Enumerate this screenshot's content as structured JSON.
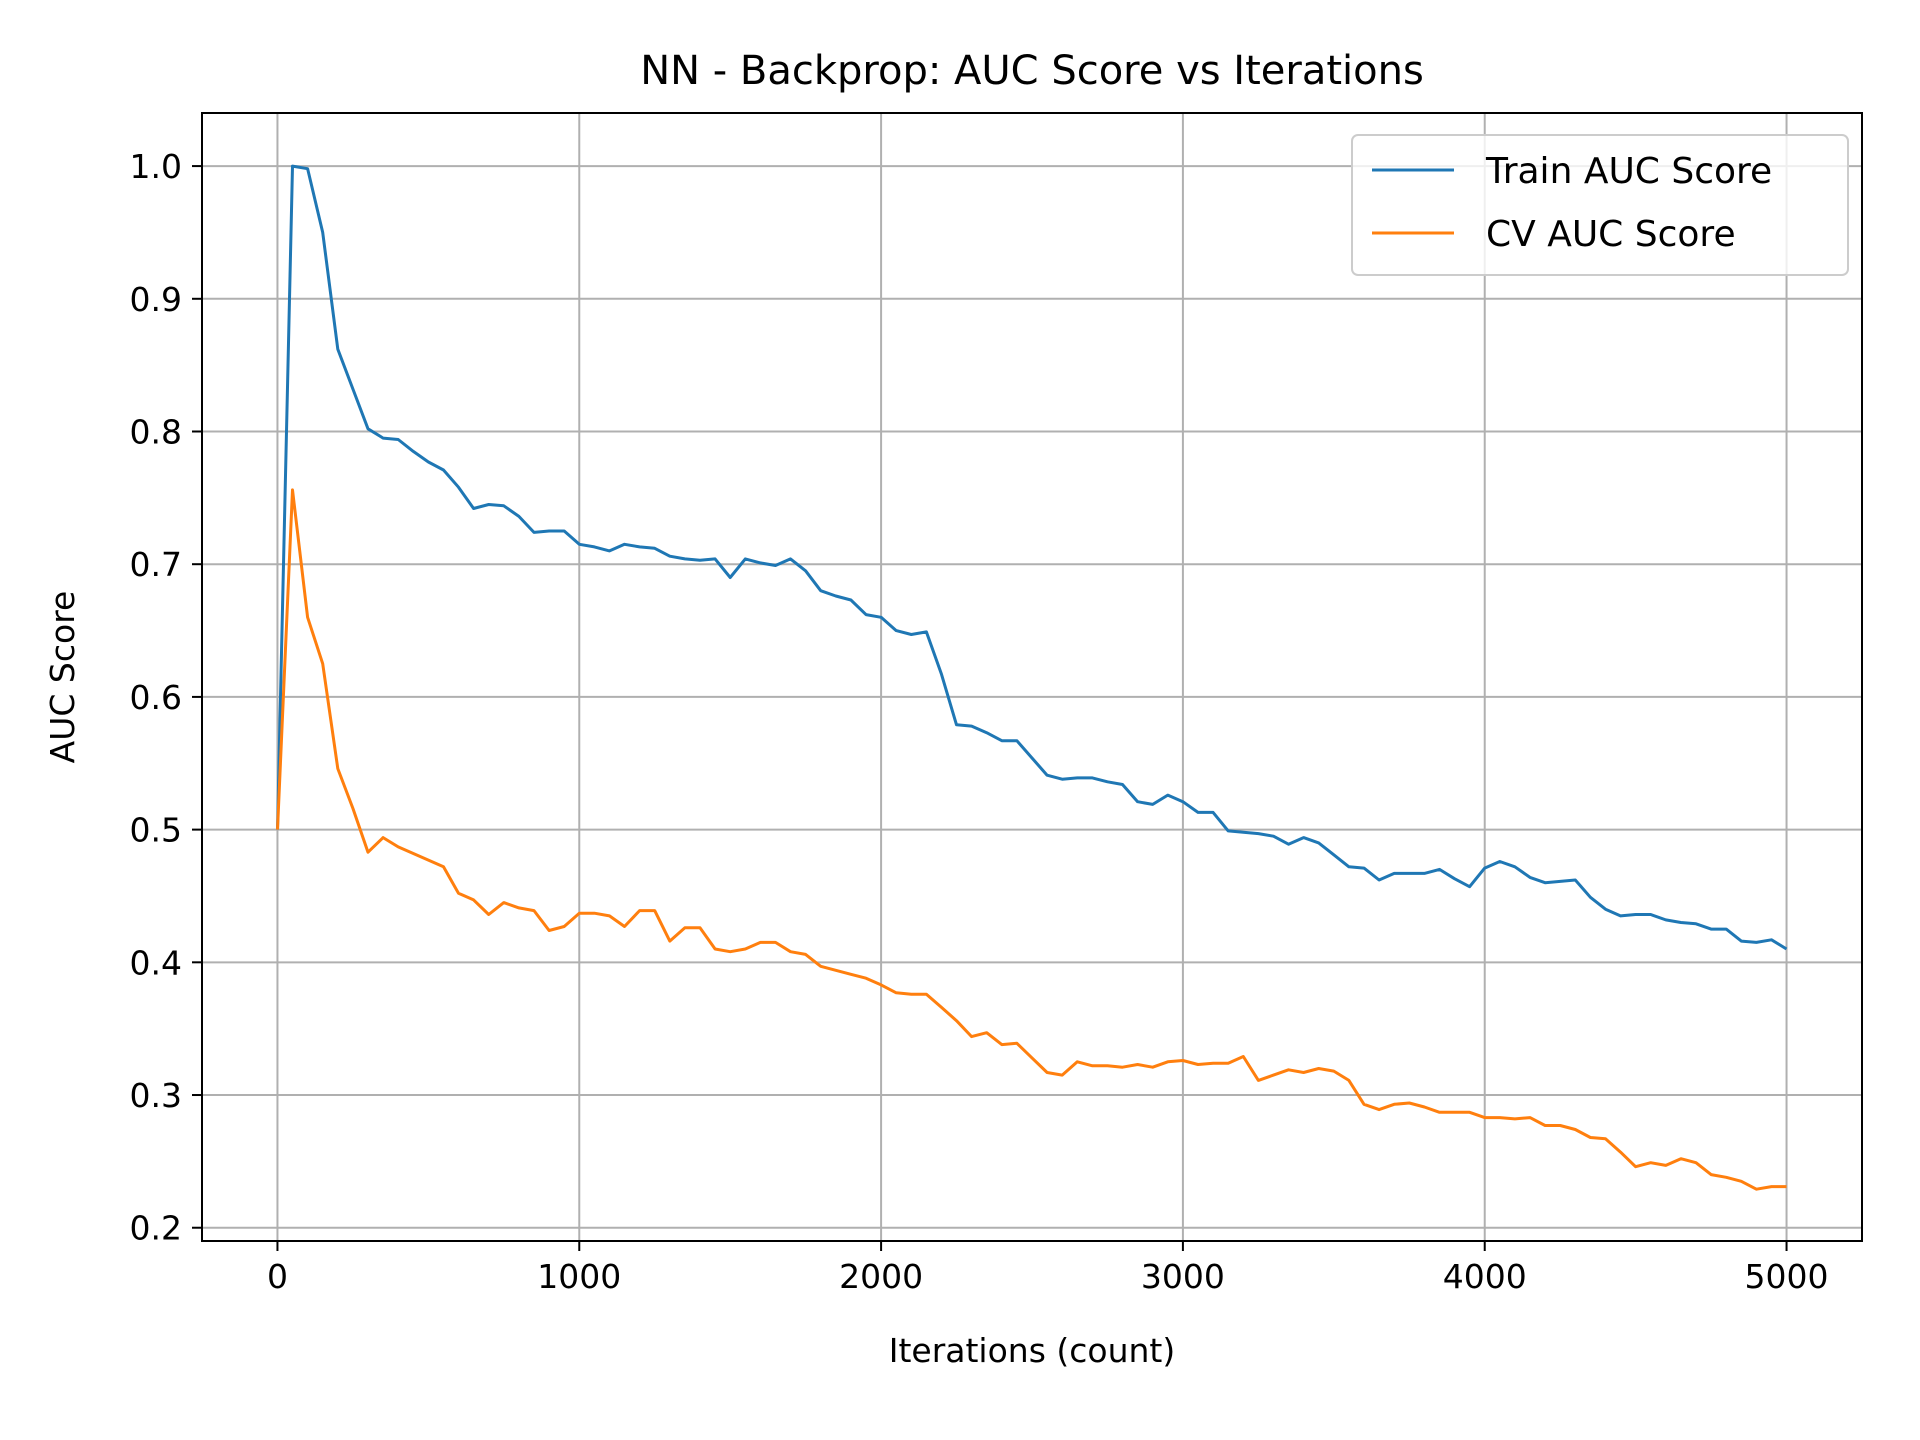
{
  "chart_data": {
    "type": "line",
    "title": "NN - Backprop: AUC Score vs Iterations",
    "xlabel": "Iterations (count)",
    "ylabel": "AUC Score",
    "xlim": [
      -250,
      5250
    ],
    "ylim": [
      0.19,
      1.04
    ],
    "xticks": [
      0,
      1000,
      2000,
      3000,
      4000,
      5000
    ],
    "yticks": [
      0.2,
      0.3,
      0.4,
      0.5,
      0.6,
      0.7,
      0.8,
      0.9,
      1.0
    ],
    "xtick_labels": [
      "0",
      "1000",
      "2000",
      "3000",
      "4000",
      "5000"
    ],
    "ytick_labels": [
      "0.2",
      "0.3",
      "0.4",
      "0.5",
      "0.6",
      "0.7",
      "0.8",
      "0.9",
      "1.0"
    ],
    "grid": true,
    "legend_position": "top-right",
    "x": [
      0,
      50,
      100,
      150,
      200,
      250,
      300,
      350,
      400,
      450,
      500,
      550,
      600,
      650,
      700,
      750,
      800,
      850,
      900,
      950,
      1000,
      1050,
      1100,
      1150,
      1200,
      1250,
      1300,
      1350,
      1400,
      1450,
      1500,
      1550,
      1600,
      1650,
      1700,
      1750,
      1800,
      1850,
      1900,
      1950,
      2000,
      2050,
      2100,
      2150,
      2200,
      2250,
      2300,
      2350,
      2400,
      2450,
      2500,
      2550,
      2600,
      2650,
      2700,
      2750,
      2800,
      2850,
      2900,
      2950,
      3000,
      3050,
      3100,
      3150,
      3200,
      3250,
      3300,
      3350,
      3400,
      3450,
      3500,
      3550,
      3600,
      3650,
      3700,
      3750,
      3800,
      3850,
      3900,
      3950,
      4000,
      4050,
      4100,
      4150,
      4200,
      4250,
      4300,
      4350,
      4400,
      4450,
      4500,
      4550,
      4600,
      4650,
      4700,
      4750,
      4800,
      4850,
      4900,
      4950,
      5000
    ],
    "series": [
      {
        "name": "Train AUC Score",
        "color": "#1f77b4",
        "values": [
          0.5,
          1.0,
          0.998,
          0.95,
          0.862,
          0.832,
          0.802,
          0.795,
          0.794,
          0.785,
          0.777,
          0.771,
          0.758,
          0.742,
          0.745,
          0.744,
          0.736,
          0.724,
          0.725,
          0.725,
          0.715,
          0.713,
          0.71,
          0.715,
          0.713,
          0.712,
          0.706,
          0.704,
          0.703,
          0.704,
          0.69,
          0.704,
          0.701,
          0.699,
          0.704,
          0.695,
          0.68,
          0.676,
          0.673,
          0.662,
          0.66,
          0.65,
          0.647,
          0.649,
          0.617,
          0.579,
          0.578,
          0.573,
          0.567,
          0.567,
          0.554,
          0.541,
          0.538,
          0.539,
          0.539,
          0.536,
          0.534,
          0.521,
          0.519,
          0.526,
          0.521,
          0.513,
          0.513,
          0.499,
          0.498,
          0.497,
          0.495,
          0.489,
          0.494,
          0.49,
          0.481,
          0.472,
          0.471,
          0.462,
          0.467,
          0.467,
          0.467,
          0.47,
          0.463,
          0.457,
          0.471,
          0.476,
          0.472,
          0.464,
          0.46,
          0.461,
          0.462,
          0.449,
          0.44,
          0.435,
          0.436,
          0.436,
          0.432,
          0.43,
          0.429,
          0.425,
          0.425,
          0.416,
          0.415,
          0.417,
          0.41
        ]
      },
      {
        "name": "CV AUC Score",
        "color": "#ff7f0e",
        "values": [
          0.5,
          0.756,
          0.66,
          0.625,
          0.546,
          0.516,
          0.483,
          0.494,
          0.487,
          0.482,
          0.477,
          0.472,
          0.452,
          0.447,
          0.436,
          0.445,
          0.441,
          0.439,
          0.424,
          0.427,
          0.437,
          0.437,
          0.435,
          0.427,
          0.439,
          0.439,
          0.416,
          0.426,
          0.426,
          0.41,
          0.408,
          0.41,
          0.415,
          0.415,
          0.408,
          0.406,
          0.397,
          0.394,
          0.391,
          0.388,
          0.383,
          0.377,
          0.376,
          0.376,
          0.366,
          0.356,
          0.344,
          0.347,
          0.338,
          0.339,
          0.328,
          0.317,
          0.315,
          0.325,
          0.322,
          0.322,
          0.321,
          0.323,
          0.321,
          0.325,
          0.326,
          0.323,
          0.324,
          0.324,
          0.329,
          0.311,
          0.315,
          0.319,
          0.317,
          0.32,
          0.318,
          0.311,
          0.293,
          0.289,
          0.293,
          0.294,
          0.291,
          0.287,
          0.287,
          0.287,
          0.283,
          0.283,
          0.282,
          0.283,
          0.277,
          0.277,
          0.274,
          0.268,
          0.267,
          0.257,
          0.246,
          0.249,
          0.247,
          0.252,
          0.249,
          0.24,
          0.238,
          0.235,
          0.229,
          0.231,
          0.231
        ]
      }
    ]
  }
}
